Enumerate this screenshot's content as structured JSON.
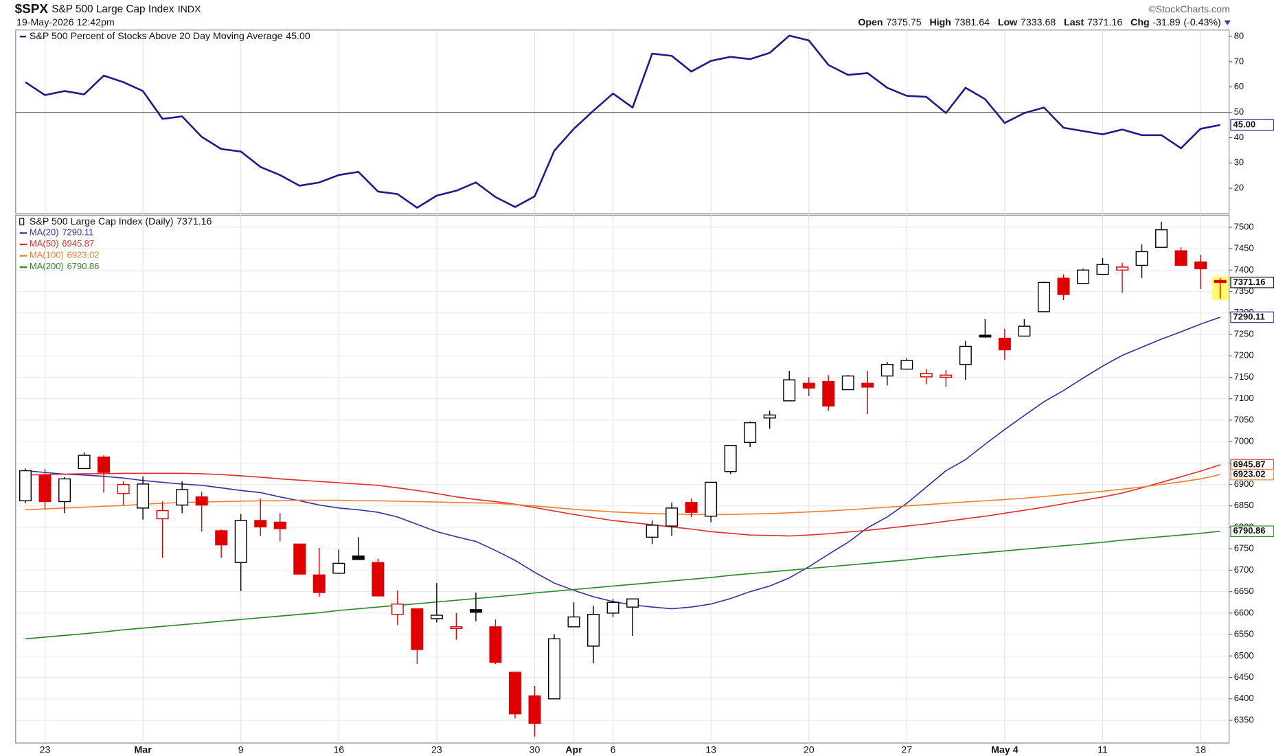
{
  "header": {
    "symbol": "$SPX",
    "name": "S&P 500 Large Cap Index",
    "exchange": "INDX",
    "date": "19-May-2026 12:42pm",
    "source": "©StockCharts.com",
    "quote_labels": [
      "Open",
      "High",
      "Low",
      "Last",
      "Chg"
    ],
    "change": -31.89,
    "change_pct": {
      "value": -0.43,
      "label": "(-0.43%)"
    }
  },
  "chart_data": [
    {
      "type": "line",
      "ylim": [
        10,
        82.5
      ],
      "yticks": [
        20,
        30,
        40,
        50,
        60,
        70,
        80
      ],
      "grid": false,
      "reference_line": 50,
      "series": [
        {
          "name": "S&P 500 Percent of Stocks Above 20 Day Moving Average",
          "color": "#1c1c8c",
          "last_value_label": "45.00",
          "values": [
            61.9,
            56.8,
            58.4,
            57.1,
            64.5,
            61.9,
            58.4,
            47.4,
            48.4,
            40.3,
            35.5,
            34.5,
            28.4,
            25.2,
            21,
            22.3,
            25.2,
            26.5,
            18.7,
            17.7,
            12.3,
            17.1,
            19,
            22.3,
            16.5,
            12.6,
            16.8,
            34.8,
            43.5,
            50.6,
            57.4,
            51.9,
            73.2,
            72.3,
            66.1,
            70.3,
            71.9,
            71,
            73.5,
            80.3,
            78.4,
            68.7,
            64.8,
            65.5,
            59.7,
            56.5,
            56.1,
            49.7,
            59.7,
            55.2,
            45.8,
            49.7,
            51.9,
            43.9,
            42.6,
            41.3,
            43.2,
            41,
            41,
            35.8,
            43.5,
            45
          ]
        }
      ]
    },
    {
      "type": "candlestick",
      "ylim": [
        6297,
        7528
      ],
      "grid": true,
      "up_color": "#000000",
      "down_color": "#e00000",
      "yticks": [
        6350,
        6400,
        6450,
        6500,
        6550,
        6600,
        6650,
        6700,
        6750,
        6800,
        6850,
        6900,
        6950,
        7000,
        7050,
        7100,
        7150,
        7200,
        7250,
        7300,
        7350,
        7400,
        7450,
        7500
      ],
      "categories": [
        null,
        "23",
        null,
        null,
        null,
        null,
        "Mar",
        null,
        null,
        null,
        null,
        "9",
        null,
        null,
        null,
        null,
        "16",
        null,
        null,
        null,
        null,
        "23",
        null,
        null,
        null,
        null,
        "30",
        null,
        "Apr",
        null,
        "6",
        null,
        null,
        null,
        null,
        "13",
        null,
        null,
        null,
        null,
        "20",
        null,
        null,
        null,
        null,
        "27",
        null,
        null,
        null,
        null,
        "May 4",
        null,
        null,
        null,
        null,
        "11",
        null,
        null,
        null,
        null,
        "18",
        null
      ],
      "series": [
        {
          "name": "S&P 500 Large Cap Index (Daily)",
          "open": [
            6862,
            6922,
            6860,
            6937,
            6964,
            6879,
            6845,
            6820,
            6852,
            6871,
            6792,
            6718,
            6816,
            6812,
            6761,
            6689,
            6693,
            6733,
            6718,
            6597,
            6610,
            6587,
            6564,
            6608,
            6568,
            6462,
            6407,
            6400,
            6568,
            6523,
            6600,
            6614,
            6777,
            6803,
            6858,
            6826,
            6930,
            6998,
            7055,
            7095,
            7136,
            7140,
            7121,
            7136,
            7153,
            7169,
            7151,
            7150,
            7180,
            7248,
            7241,
            7246,
            7303,
            7381,
            7369,
            7390,
            7400,
            7411,
            7453,
            7445,
            7419,
            7375.75
          ],
          "high": [
            6937,
            6936,
            6917,
            6975,
            6968,
            6907,
            6919,
            6860,
            6907,
            6883,
            6795,
            6831,
            6867,
            6833,
            6761,
            6752,
            6748,
            6777,
            6727,
            6653,
            6610,
            6670,
            6600,
            6648,
            6585,
            6462,
            6430,
            6551,
            6625,
            6617,
            6633,
            6633,
            6816,
            6858,
            6867,
            6905,
            6991,
            7047,
            7072,
            7165,
            7150,
            7155,
            7155,
            7165,
            7186,
            7195,
            7169,
            7167,
            7235,
            7286,
            7263,
            7286,
            7373,
            7390,
            7403,
            7428,
            7417,
            7460,
            7513,
            7453,
            7436,
            7381.64
          ],
          "low": [
            6856,
            6843,
            6833,
            6936,
            6881,
            6852,
            6818,
            6729,
            6833,
            6790,
            6729,
            6651,
            6780,
            6767,
            6691,
            6638,
            6691,
            6727,
            6640,
            6572,
            6481,
            6578,
            6538,
            6581,
            6481,
            6354,
            6312,
            6400,
            6568,
            6483,
            6591,
            6547,
            6761,
            6780,
            6824,
            6812,
            6924,
            6987,
            7030,
            7095,
            7106,
            7072,
            7121,
            7064,
            7131,
            7169,
            7134,
            7127,
            7144,
            7242,
            7191,
            7246,
            7303,
            7330,
            7369,
            7390,
            7347,
            7381,
            7453,
            7411,
            7356,
            7333.68
          ],
          "close": [
            6932,
            6860,
            6913,
            6968,
            6928,
            6900,
            6901,
            6839,
            6888,
            6852,
            6759,
            6816,
            6801,
            6797,
            6691,
            6648,
            6716,
            6725,
            6640,
            6621,
            6515,
            6595,
            6568,
            6602,
            6485,
            6365,
            6343,
            6540,
            6591,
            6597,
            6625,
            6633,
            6805,
            6845,
            6835,
            6905,
            6991,
            7044,
            7062,
            7144,
            7125,
            7083,
            7153,
            7127,
            7180,
            7189,
            7159,
            7155,
            7222,
            7244,
            7214,
            7269,
            7371,
            7343,
            7400,
            7413,
            7407,
            7443,
            7494,
            7411,
            7403.05,
            7371.16
          ]
        }
      ],
      "overlays": [
        {
          "name": "MA(20)",
          "color": "#3535a0",
          "values": [
            6932,
            6928,
            6924,
            6922,
            6919,
            6915,
            6909,
            6905,
            6901,
            6898,
            6892,
            6886,
            6881,
            6871,
            6862,
            6852,
            6845,
            6841,
            6835,
            6824,
            6807,
            6790,
            6778,
            6767,
            6746,
            6723,
            6695,
            6670,
            6653,
            6638,
            6627,
            6619,
            6614,
            6610,
            6614,
            6621,
            6634,
            6650,
            6663,
            6682,
            6708,
            6737,
            6765,
            6799,
            6824,
            6856,
            6894,
            6932,
            6958,
            6994,
            7028,
            7061,
            7093,
            7119,
            7148,
            7176,
            7201,
            7220,
            7239,
            7256,
            7274,
            7290.11
          ]
        },
        {
          "name": "MA(50)",
          "color": "#e03030",
          "values": [
            6922,
            6923,
            6924,
            6925,
            6925,
            6926,
            6926,
            6926,
            6926,
            6925,
            6923,
            6920,
            6917,
            6913,
            6910,
            6907,
            6904,
            6901,
            6898,
            6892,
            6886,
            6879,
            6871,
            6865,
            6860,
            6854,
            6846,
            6838,
            6830,
            6823,
            6816,
            6811,
            6806,
            6801,
            6796,
            6790,
            6786,
            6782,
            6781,
            6780,
            6782,
            6785,
            6789,
            6793,
            6798,
            6803,
            6808,
            6814,
            6820,
            6826,
            6833,
            6840,
            6847,
            6855,
            6863,
            6871,
            6880,
            6892,
            6905,
            6918,
            6931,
            6945.87
          ]
        },
        {
          "name": "MA(100)",
          "color": "#f08030",
          "values": [
            6841,
            6843,
            6845,
            6847,
            6849,
            6851,
            6854,
            6856,
            6858,
            6859,
            6860,
            6861,
            6862,
            6862,
            6863,
            6863,
            6863,
            6862,
            6862,
            6861,
            6860,
            6859,
            6858,
            6857,
            6856,
            6853,
            6850,
            6846,
            6842,
            6839,
            6836,
            6834,
            6832,
            6831,
            6830,
            6830,
            6830,
            6831,
            6832,
            6834,
            6836,
            6838,
            6841,
            6844,
            6847,
            6850,
            6853,
            6856,
            6859,
            6862,
            6865,
            6868,
            6872,
            6876,
            6880,
            6884,
            6889,
            6894,
            6900,
            6906,
            6913,
            6923.02
          ]
        },
        {
          "name": "MA(200)",
          "color": "#2a8a2a",
          "values": [
            6540,
            6544,
            6548,
            6552,
            6556,
            6561,
            6565,
            6569,
            6573,
            6577,
            6581,
            6585,
            6589,
            6593,
            6597,
            6601,
            6606,
            6610,
            6614,
            6618,
            6622,
            6626,
            6630,
            6634,
            6638,
            6642,
            6647,
            6651,
            6655,
            6659,
            6663,
            6667,
            6671,
            6675,
            6679,
            6683,
            6688,
            6692,
            6696,
            6700,
            6704,
            6708,
            6712,
            6716,
            6720,
            6724,
            6729,
            6733,
            6737,
            6741,
            6745,
            6749,
            6753,
            6757,
            6761,
            6765,
            6770,
            6774,
            6778,
            6782,
            6786,
            6790.86
          ]
        }
      ]
    }
  ]
}
